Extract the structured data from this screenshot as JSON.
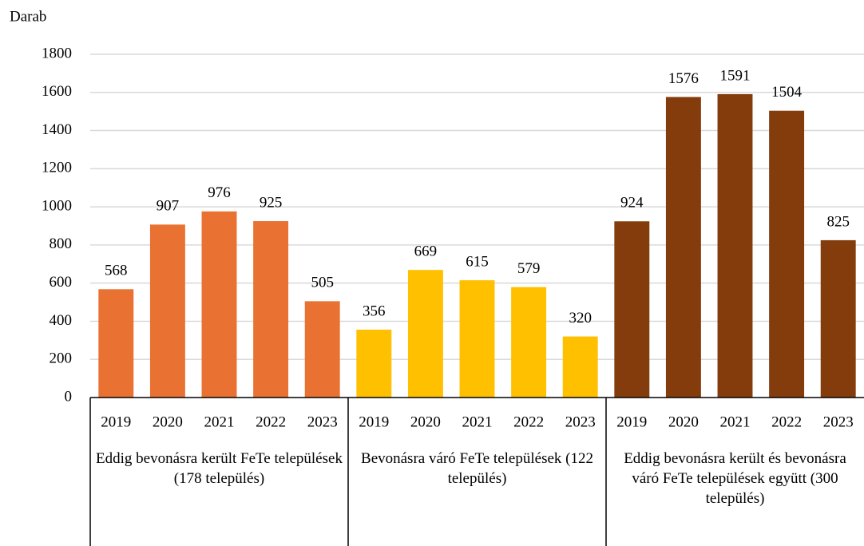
{
  "chart_data": {
    "type": "bar",
    "y_label": "Darab",
    "ylim": [
      0,
      1800
    ],
    "yticks": [
      0,
      200,
      400,
      600,
      800,
      1000,
      1200,
      1400,
      1600,
      1800
    ],
    "grid": true,
    "groups": [
      {
        "name": "Eddig bevonásra került FeTe települések (178 település)",
        "color": "#E97132",
        "categories": [
          "2019",
          "2020",
          "2021",
          "2022",
          "2023"
        ],
        "values": [
          568,
          907,
          976,
          925,
          505
        ]
      },
      {
        "name": "Bevonásra váró FeTe települések (122 település)",
        "color": "#FFC000",
        "categories": [
          "2019",
          "2020",
          "2021",
          "2022",
          "2023"
        ],
        "values": [
          356,
          669,
          615,
          579,
          320
        ]
      },
      {
        "name": "Eddig bevonásra került és bevonásra váró FeTe települések együtt (300 település)",
        "color": "#843C0C",
        "categories": [
          "2019",
          "2020",
          "2021",
          "2022",
          "2023"
        ],
        "values": [
          924,
          1576,
          1591,
          1504,
          825
        ]
      }
    ]
  }
}
